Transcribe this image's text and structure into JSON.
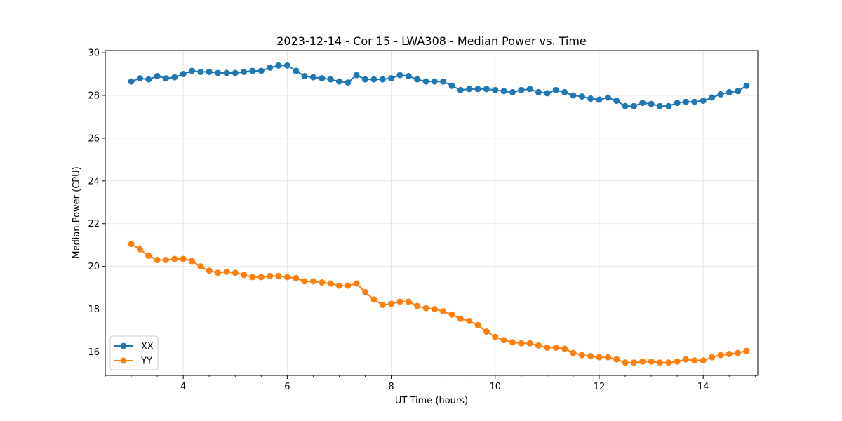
{
  "chart_data": {
    "type": "line",
    "title": "2023-12-14 - Cor 15 - LWA308 - Median Power vs. Time",
    "xlabel": "UT Time (hours)",
    "ylabel": "Median Power (CPU)",
    "xlim": [
      2.5,
      15.05
    ],
    "ylim": [
      14.9,
      30.1
    ],
    "xticks": [
      4,
      6,
      8,
      10,
      12,
      14
    ],
    "yticks": [
      16,
      18,
      20,
      22,
      24,
      26,
      28,
      30
    ],
    "grid": true,
    "legend_position": "lower-left",
    "x": [
      3.0,
      3.167,
      3.333,
      3.5,
      3.667,
      3.833,
      4.0,
      4.167,
      4.333,
      4.5,
      4.667,
      4.833,
      5.0,
      5.167,
      5.333,
      5.5,
      5.667,
      5.833,
      6.0,
      6.167,
      6.333,
      6.5,
      6.667,
      6.833,
      7.0,
      7.167,
      7.333,
      7.5,
      7.667,
      7.833,
      8.0,
      8.167,
      8.333,
      8.5,
      8.667,
      8.833,
      9.0,
      9.167,
      9.333,
      9.5,
      9.667,
      9.833,
      10.0,
      10.167,
      10.333,
      10.5,
      10.667,
      10.833,
      11.0,
      11.167,
      11.333,
      11.5,
      11.667,
      11.833,
      12.0,
      12.167,
      12.333,
      12.5,
      12.667,
      12.833,
      13.0,
      13.167,
      13.333,
      13.5,
      13.667,
      13.833,
      14.0,
      14.167,
      14.333,
      14.5,
      14.667,
      14.833
    ],
    "series": [
      {
        "name": "XX",
        "color": "#1f77b4",
        "values": [
          28.65,
          28.8,
          28.75,
          28.9,
          28.8,
          28.85,
          29.0,
          29.15,
          29.1,
          29.1,
          29.05,
          29.05,
          29.05,
          29.1,
          29.15,
          29.15,
          29.3,
          29.4,
          29.4,
          29.15,
          28.9,
          28.85,
          28.8,
          28.75,
          28.65,
          28.6,
          28.95,
          28.75,
          28.75,
          28.75,
          28.8,
          28.95,
          28.9,
          28.75,
          28.65,
          28.65,
          28.65,
          28.45,
          28.25,
          28.3,
          28.3,
          28.3,
          28.25,
          28.2,
          28.15,
          28.25,
          28.3,
          28.15,
          28.1,
          28.25,
          28.15,
          28.0,
          27.95,
          27.85,
          27.8,
          27.9,
          27.75,
          27.5,
          27.5,
          27.65,
          27.6,
          27.5,
          27.5,
          27.65,
          27.7,
          27.7,
          27.75,
          27.9,
          28.05,
          28.15,
          28.2,
          28.45
        ]
      },
      {
        "name": "YY",
        "color": "#ff7f0e",
        "values": [
          21.05,
          20.8,
          20.5,
          20.3,
          20.3,
          20.35,
          20.35,
          20.25,
          20.0,
          19.8,
          19.7,
          19.75,
          19.7,
          19.6,
          19.5,
          19.5,
          19.55,
          19.55,
          19.5,
          19.45,
          19.3,
          19.3,
          19.25,
          19.2,
          19.1,
          19.1,
          19.2,
          18.8,
          18.45,
          18.2,
          18.25,
          18.35,
          18.35,
          18.15,
          18.05,
          18.0,
          17.9,
          17.75,
          17.55,
          17.45,
          17.25,
          16.95,
          16.7,
          16.55,
          16.45,
          16.4,
          16.4,
          16.3,
          16.2,
          16.2,
          16.15,
          15.95,
          15.85,
          15.8,
          15.75,
          15.75,
          15.65,
          15.5,
          15.5,
          15.55,
          15.55,
          15.5,
          15.5,
          15.55,
          15.65,
          15.6,
          15.6,
          15.75,
          15.85,
          15.9,
          15.95,
          16.05
        ]
      }
    ]
  }
}
